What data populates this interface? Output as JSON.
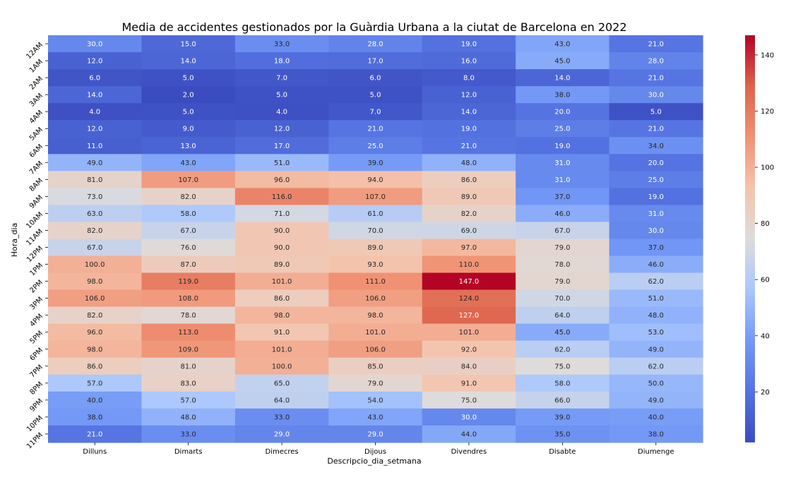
{
  "chart_data": {
    "type": "heatmap",
    "title": "Media de accidentes gestionados por la Guàrdia Urbana a la ciutat de Barcelona en 2022",
    "xlabel": "Descripcio_dia_setmana",
    "ylabel": "Hora_dia",
    "columns": [
      "Dilluns",
      "Dimarts",
      "Dimecres",
      "Dijous",
      "Divendres",
      "Disabte",
      "Diumenge"
    ],
    "rows": [
      "12AM",
      "1AM",
      "2AM",
      "3AM",
      "4AM",
      "5AM",
      "6AM",
      "7AM",
      "8AM",
      "9AM",
      "10AM",
      "11AM",
      "12PM",
      "1PM",
      "2PM",
      "3PM",
      "4PM",
      "5PM",
      "6PM",
      "7PM",
      "8PM",
      "9PM",
      "10PM",
      "11PM"
    ],
    "values": [
      [
        30,
        15,
        33,
        28,
        19,
        43,
        21
      ],
      [
        12,
        14,
        18,
        17,
        16,
        45,
        28
      ],
      [
        6,
        5,
        7,
        6,
        8,
        14,
        21
      ],
      [
        14,
        2,
        5,
        5,
        12,
        38,
        30
      ],
      [
        4,
        5,
        4,
        7,
        14,
        20,
        5
      ],
      [
        12,
        9,
        12,
        21,
        19,
        25,
        21
      ],
      [
        11,
        13,
        17,
        25,
        21,
        19,
        34
      ],
      [
        49,
        43,
        51,
        39,
        48,
        31,
        20
      ],
      [
        81,
        107,
        96,
        94,
        86,
        31,
        25
      ],
      [
        73,
        82,
        116,
        107,
        89,
        37,
        19
      ],
      [
        63,
        58,
        71,
        61,
        82,
        46,
        31
      ],
      [
        82,
        67,
        90,
        70,
        69,
        67,
        30
      ],
      [
        67,
        76,
        90,
        89,
        97,
        79,
        37
      ],
      [
        100,
        87,
        89,
        93,
        110,
        78,
        46
      ],
      [
        98,
        119,
        101,
        111,
        147,
        79,
        62
      ],
      [
        106,
        108,
        86,
        106,
        124,
        70,
        51
      ],
      [
        82,
        78,
        98,
        98,
        127,
        64,
        48
      ],
      [
        96,
        113,
        91,
        101,
        101,
        45,
        53
      ],
      [
        98,
        109,
        101,
        106,
        92,
        62,
        49
      ],
      [
        86,
        81,
        100,
        85,
        84,
        75,
        62
      ],
      [
        57,
        83,
        65,
        79,
        91,
        58,
        50
      ],
      [
        40,
        57,
        64,
        54,
        75,
        66,
        49
      ],
      [
        38,
        48,
        33,
        43,
        30,
        39,
        40
      ],
      [
        21,
        33,
        29,
        29,
        44,
        35,
        38
      ]
    ],
    "colormap": "coolwarm",
    "vmin": 2,
    "vmax": 147,
    "colorbar_ticks": [
      20,
      40,
      60,
      80,
      100,
      120,
      140
    ],
    "value_format": "0.0"
  }
}
